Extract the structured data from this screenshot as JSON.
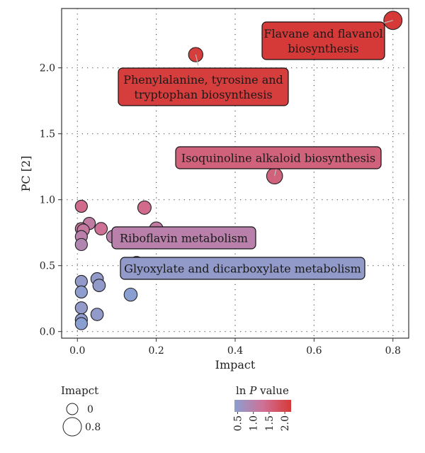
{
  "chart_data": {
    "type": "scatter",
    "xlabel": "Impact",
    "ylabel": "PC [2]",
    "xlim": [
      -0.04,
      0.84
    ],
    "ylim": [
      -0.05,
      2.45
    ],
    "xticks": [
      "0.0",
      "0.2",
      "0.4",
      "0.6",
      "0.8"
    ],
    "yticks": [
      "0.0",
      "0.5",
      "1.0",
      "1.5",
      "2.0"
    ],
    "grid": "dotted",
    "color_scale": {
      "low": "#8a9fd1",
      "mid": "#cf7196",
      "high": "#d63a38"
    },
    "points": [
      {
        "x": 0.8,
        "y": 2.36,
        "p": 2.2
      },
      {
        "x": 0.3,
        "y": 2.1,
        "p": 2.15
      },
      {
        "x": 0.5,
        "y": 1.18,
        "p": 1.55
      },
      {
        "x": 0.17,
        "y": 0.94,
        "p": 1.4
      },
      {
        "x": 0.2,
        "y": 0.78,
        "p": 1.1
      },
      {
        "x": 0.06,
        "y": 0.78,
        "p": 1.3
      },
      {
        "x": 0.03,
        "y": 0.82,
        "p": 1.1
      },
      {
        "x": 0.09,
        "y": 0.72,
        "p": 1.0
      },
      {
        "x": 0.01,
        "y": 0.95,
        "p": 1.4
      },
      {
        "x": 0.01,
        "y": 0.78,
        "p": 1.2
      },
      {
        "x": 0.015,
        "y": 0.77,
        "p": 1.15
      },
      {
        "x": 0.01,
        "y": 0.72,
        "p": 1.0
      },
      {
        "x": 0.01,
        "y": 0.66,
        "p": 0.9
      },
      {
        "x": 0.15,
        "y": 0.52,
        "p": 0.5
      },
      {
        "x": 0.05,
        "y": 0.4,
        "p": 0.5
      },
      {
        "x": 0.055,
        "y": 0.35,
        "p": 0.5
      },
      {
        "x": 0.01,
        "y": 0.38,
        "p": 0.5
      },
      {
        "x": 0.01,
        "y": 0.3,
        "p": 0.45
      },
      {
        "x": 0.135,
        "y": 0.28,
        "p": 0.4
      },
      {
        "x": 0.01,
        "y": 0.18,
        "p": 0.5
      },
      {
        "x": 0.05,
        "y": 0.13,
        "p": 0.5
      },
      {
        "x": 0.01,
        "y": 0.09,
        "p": 0.45
      },
      {
        "x": 0.01,
        "y": 0.06,
        "p": 0.4
      }
    ],
    "annotations": [
      {
        "lines": [
          "Flavane and flavanol",
          "biosynthesis"
        ],
        "px": 0.8,
        "py": 2.36,
        "p": 2.2
      },
      {
        "lines": [
          "Phenylalanine, tyrosine and",
          "tryptophan biosynthesis"
        ],
        "px": 0.3,
        "py": 2.1,
        "p": 2.15
      },
      {
        "lines": [
          "Isoquinoline alkaloid biosynthesis"
        ],
        "px": 0.5,
        "py": 1.18,
        "p": 1.55
      },
      {
        "lines": [
          "Riboflavin metabolism"
        ],
        "px": 0.09,
        "py": 0.72,
        "p": 1.0
      },
      {
        "lines": [
          "Glyoxylate and dicarboxylate metabolism"
        ],
        "px": 0.15,
        "py": 0.52,
        "p": 0.5
      }
    ],
    "size_legend": {
      "title": "Imapct",
      "labels": [
        "0",
        "0.8"
      ]
    },
    "color_legend": {
      "title_prefix": "ln ",
      "title_italic": "P",
      "title_suffix": " value",
      "ticks": [
        "0.5",
        "1.0",
        "1.5",
        "2.0"
      ]
    }
  }
}
